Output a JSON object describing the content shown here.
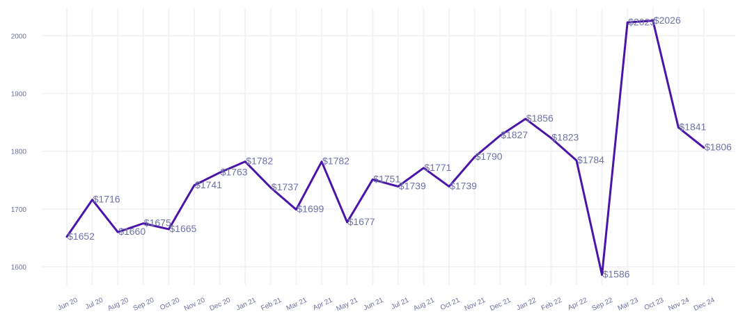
{
  "chart_data": {
    "type": "line",
    "title": "",
    "xlabel": "",
    "ylabel": "",
    "categories": [
      "Jun 20",
      "Jul 20",
      "Aug 20",
      "Sep 20",
      "Oct 20",
      "Nov 20",
      "Dec 20",
      "Jan 21",
      "Feb 21",
      "Mar 21",
      "Apr 21",
      "May 21",
      "Jun 21",
      "Jul 21",
      "Aug 21",
      "Oct 21",
      "Nov 21",
      "Dec 21",
      "Jan 22",
      "Feb 22",
      "Apr 22",
      "Sep 22",
      "Mar 23",
      "Oct 23",
      "Nov 24",
      "Dec 24"
    ],
    "series": [
      {
        "values": [
          1652,
          1716,
          1660,
          1675,
          1665,
          1741,
          1763,
          1782,
          1737,
          1699,
          1782,
          1677,
          1751,
          1739,
          1771,
          1739,
          1790,
          1827,
          1856,
          1823,
          1784,
          1586,
          2023,
          2026,
          1841,
          1806
        ],
        "color": "#4a14a8"
      }
    ],
    "data_labels": [
      "$1652",
      "$1716",
      "$1660",
      "$1675",
      "$1665",
      "$1741",
      "$1763",
      "$1782",
      "$1737",
      "$1699",
      "$1782",
      "$1677",
      "$1751",
      "$1739",
      "$1771",
      "$1739",
      "$1790",
      "$1827",
      "$1856",
      "$1823",
      "$1784",
      "$1586",
      "$2023",
      "$2026",
      "$1841",
      "$1806"
    ],
    "yticks": [
      "1600",
      "1700",
      "1800",
      "1900",
      "2000"
    ],
    "ylim": [
      1560,
      2050
    ],
    "grid": true,
    "legend": "none"
  }
}
